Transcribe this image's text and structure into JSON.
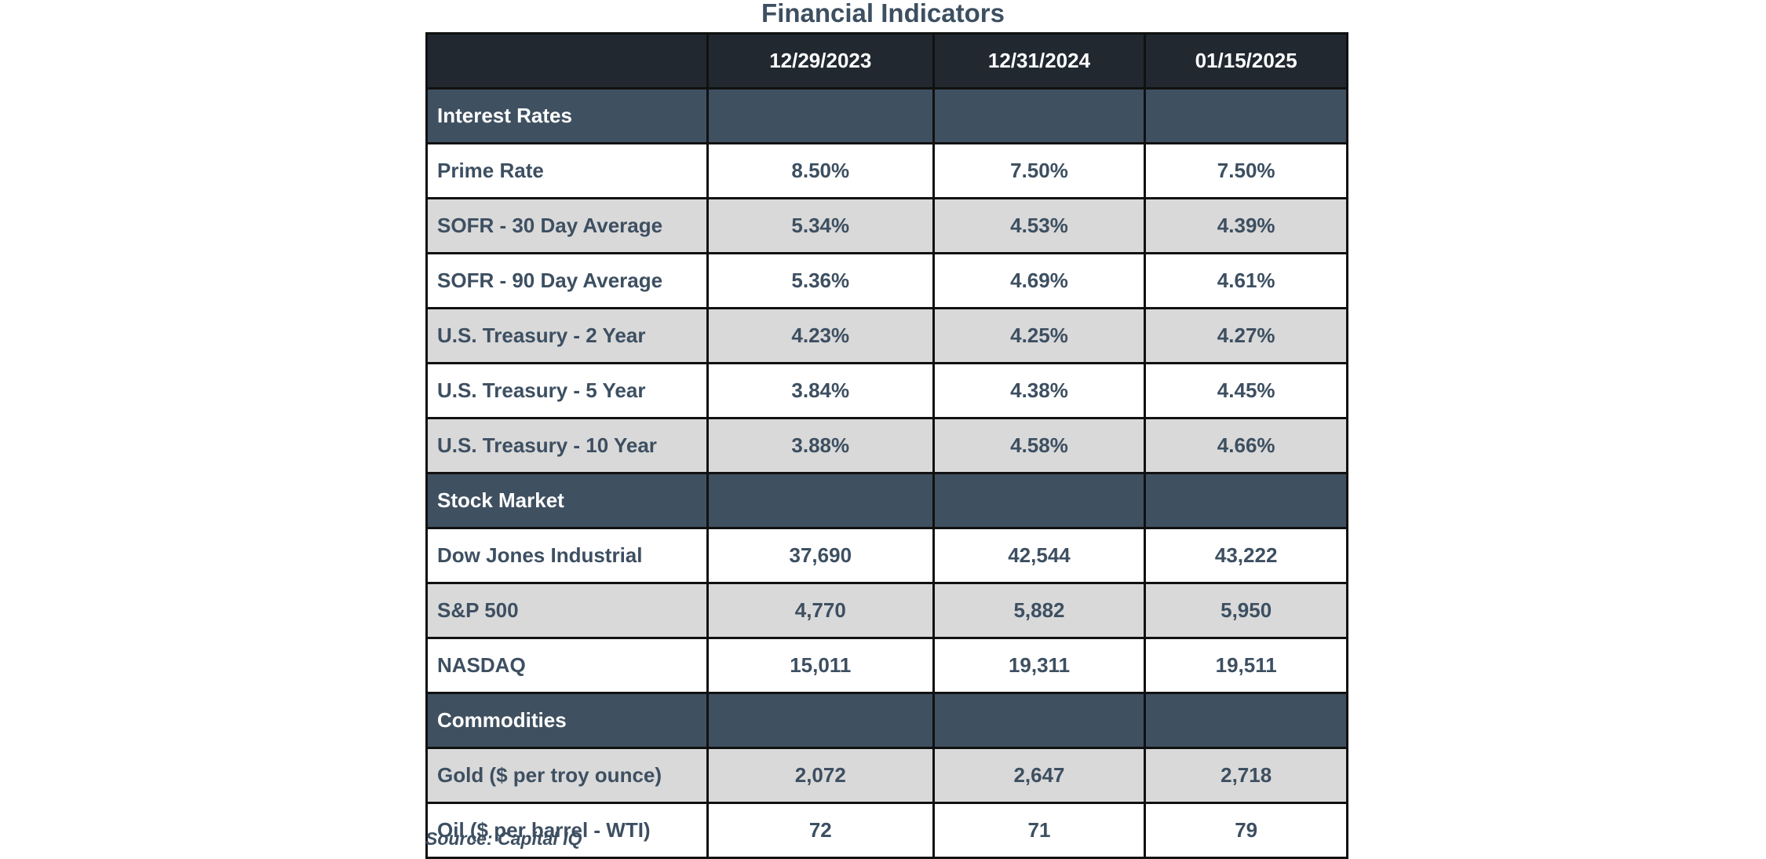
{
  "title": "Financial Indicators",
  "columns": [
    "",
    "12/29/2023",
    "12/31/2024",
    "01/15/2025"
  ],
  "sections": [
    {
      "name": "Interest Rates",
      "rows": [
        {
          "label": "Prime Rate",
          "values": [
            "8.50%",
            "7.50%",
            "7.50%"
          ]
        },
        {
          "label": "SOFR - 30 Day Average",
          "values": [
            "5.34%",
            "4.53%",
            "4.39%"
          ]
        },
        {
          "label": "SOFR - 90 Day Average",
          "values": [
            "5.36%",
            "4.69%",
            "4.61%"
          ]
        },
        {
          "label": "U.S. Treasury - 2 Year",
          "values": [
            "4.23%",
            "4.25%",
            "4.27%"
          ]
        },
        {
          "label": "U.S. Treasury - 5 Year",
          "values": [
            "3.84%",
            "4.38%",
            "4.45%"
          ]
        },
        {
          "label": "U.S. Treasury - 10 Year",
          "values": [
            "3.88%",
            "4.58%",
            "4.66%"
          ]
        }
      ]
    },
    {
      "name": "Stock Market",
      "rows": [
        {
          "label": "Dow Jones Industrial",
          "values": [
            "37,690",
            "42,544",
            "43,222"
          ]
        },
        {
          "label": "S&P 500",
          "values": [
            "4,770",
            "5,882",
            "5,950"
          ]
        },
        {
          "label": "NASDAQ",
          "values": [
            "15,011",
            "19,311",
            "19,511"
          ]
        }
      ]
    },
    {
      "name": "Commodities",
      "rows": [
        {
          "label": "Gold ($ per troy ounce)",
          "values": [
            "2,072",
            "2,647",
            "2,718"
          ]
        },
        {
          "label": "Oil ($ per barrel - WTI)",
          "values": [
            "72",
            "71",
            "79"
          ]
        }
      ]
    }
  ],
  "source": "Source: Capital IQ",
  "colors": {
    "header_bg": "#212830",
    "section_bg": "#3f5060",
    "row_alt_bg": "#d9d9d9",
    "text": "#3d4f61"
  }
}
